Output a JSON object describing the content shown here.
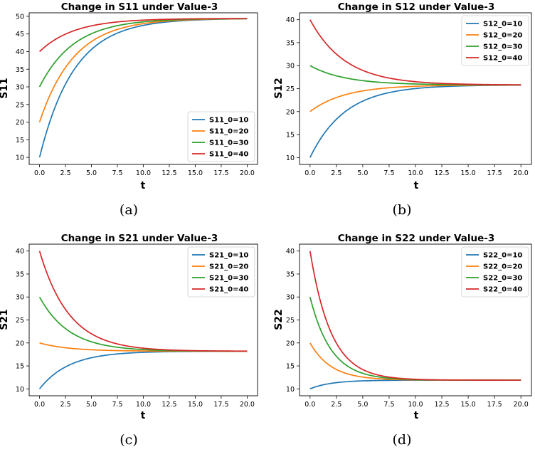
{
  "chart_data": [
    {
      "type": "line",
      "title": "Change in S11 under Value-3",
      "xlabel": "t",
      "ylabel": "S11",
      "caption": "(a)",
      "xlim": [
        -1.0,
        21.0
      ],
      "ylim": [
        8.0,
        51.0
      ],
      "xticks": [
        "0.0",
        "2.5",
        "5.0",
        "7.5",
        "10.0",
        "12.5",
        "15.0",
        "17.5",
        "20.0"
      ],
      "yticks": [
        "10",
        "15",
        "20",
        "25",
        "30",
        "35",
        "40",
        "45",
        "50"
      ],
      "legend_position": "lower right",
      "series": [
        {
          "name": "S11_0=10",
          "color": "#1f77b4",
          "start": 10,
          "final": 49.4,
          "k": 0.3
        },
        {
          "name": "S11_0=20",
          "color": "#ff7f0e",
          "start": 20,
          "final": 49.4,
          "k": 0.3
        },
        {
          "name": "S11_0=30",
          "color": "#2ca02c",
          "start": 30,
          "final": 49.4,
          "k": 0.3
        },
        {
          "name": "S11_0=40",
          "color": "#d62728",
          "start": 40,
          "final": 49.4,
          "k": 0.3
        }
      ]
    },
    {
      "type": "line",
      "title": "Change in S12 under Value-3",
      "xlabel": "t",
      "ylabel": "S12",
      "caption": "(b)",
      "xlim": [
        -1.0,
        21.0
      ],
      "ylim": [
        8.5,
        41.5
      ],
      "xticks": [
        "0.0",
        "2.5",
        "5.0",
        "7.5",
        "10.0",
        "12.5",
        "15.0",
        "17.5",
        "20.0"
      ],
      "yticks": [
        "10",
        "15",
        "20",
        "25",
        "30",
        "35",
        "40"
      ],
      "legend_position": "upper right",
      "series": [
        {
          "name": "S12_0=10",
          "color": "#1f77b4",
          "start": 10,
          "final": 25.8,
          "k": 0.3
        },
        {
          "name": "S12_0=20",
          "color": "#ff7f0e",
          "start": 20,
          "final": 25.8,
          "k": 0.3
        },
        {
          "name": "S12_0=30",
          "color": "#2ca02c",
          "start": 30,
          "final": 25.8,
          "k": 0.3
        },
        {
          "name": "S12_0=40",
          "color": "#d62728",
          "start": 40,
          "final": 25.8,
          "k": 0.3
        }
      ]
    },
    {
      "type": "line",
      "title": "Change in S21 under Value-3",
      "xlabel": "t",
      "ylabel": "S21",
      "caption": "(c)",
      "xlim": [
        -1.0,
        21.0
      ],
      "ylim": [
        8.5,
        41.5
      ],
      "xticks": [
        "0.0",
        "2.5",
        "5.0",
        "7.5",
        "10.0",
        "12.5",
        "15.0",
        "17.5",
        "20.0"
      ],
      "yticks": [
        "10",
        "15",
        "20",
        "25",
        "30",
        "35",
        "40"
      ],
      "legend_position": "upper right",
      "series": [
        {
          "name": "S21_0=10",
          "color": "#1f77b4",
          "start": 10,
          "final": 18.2,
          "k": 0.35
        },
        {
          "name": "S21_0=20",
          "color": "#ff7f0e",
          "start": 20,
          "final": 18.2,
          "k": 0.35
        },
        {
          "name": "S21_0=30",
          "color": "#2ca02c",
          "start": 30,
          "final": 18.2,
          "k": 0.35
        },
        {
          "name": "S21_0=40",
          "color": "#d62728",
          "start": 40,
          "final": 18.2,
          "k": 0.35
        }
      ]
    },
    {
      "type": "line",
      "title": "Change in S22 under Value-3",
      "xlabel": "t",
      "ylabel": "S22",
      "caption": "(d)",
      "xlim": [
        -1.0,
        21.0
      ],
      "ylim": [
        8.5,
        41.5
      ],
      "xticks": [
        "0.0",
        "2.5",
        "5.0",
        "7.5",
        "10.0",
        "12.5",
        "15.0",
        "17.5",
        "20.0"
      ],
      "yticks": [
        "10",
        "15",
        "20",
        "25",
        "30",
        "35",
        "40"
      ],
      "legend_position": "upper right",
      "series": [
        {
          "name": "S22_0=10",
          "color": "#1f77b4",
          "start": 10,
          "final": 11.9,
          "k": 0.5
        },
        {
          "name": "S22_0=20",
          "color": "#ff7f0e",
          "start": 20,
          "final": 11.9,
          "k": 0.5
        },
        {
          "name": "S22_0=30",
          "color": "#2ca02c",
          "start": 30,
          "final": 11.9,
          "k": 0.5
        },
        {
          "name": "S22_0=40",
          "color": "#d62728",
          "start": 40,
          "final": 11.9,
          "k": 0.5
        }
      ]
    }
  ]
}
